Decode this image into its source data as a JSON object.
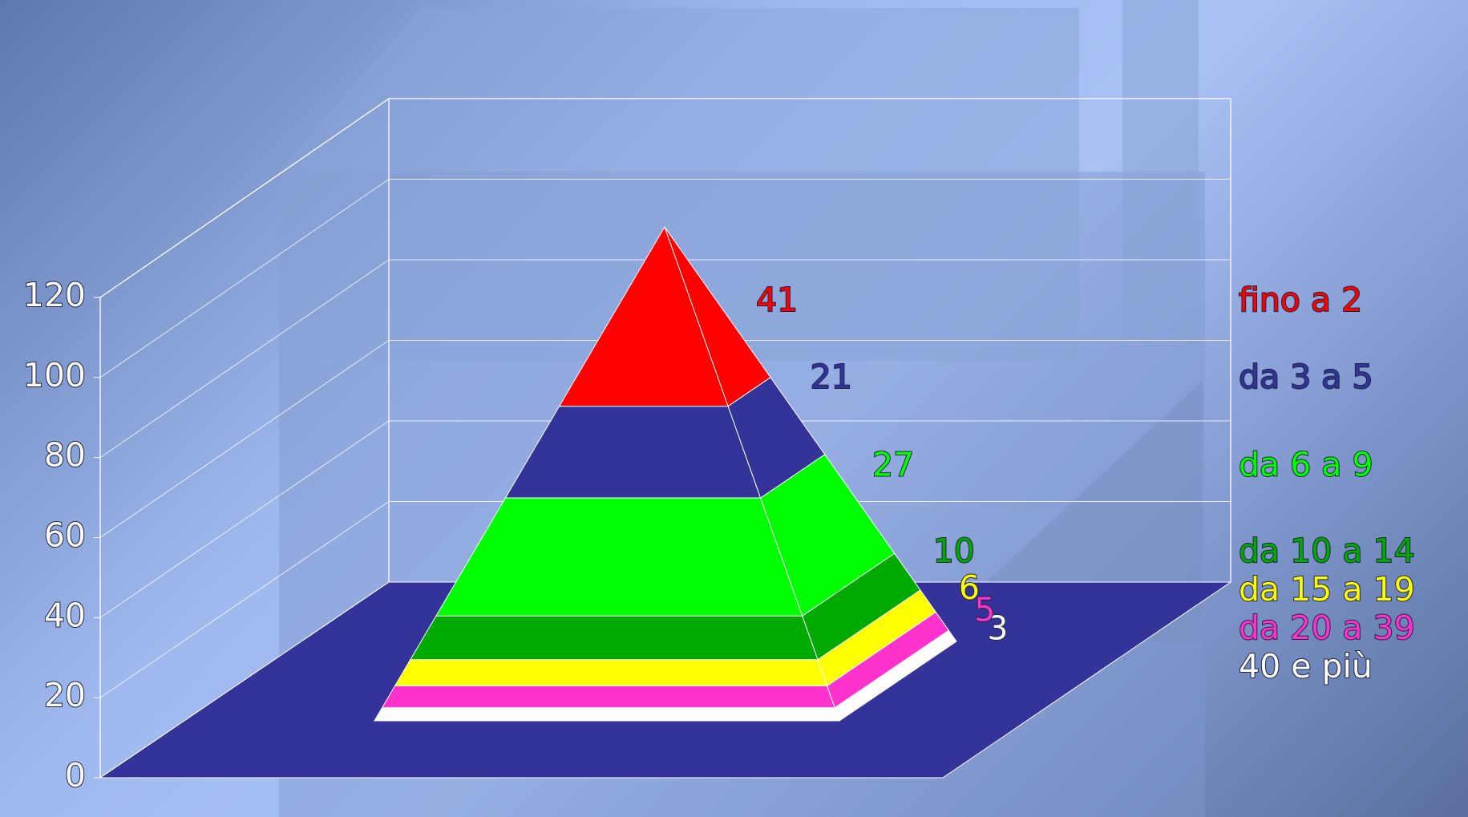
{
  "chart_data": {
    "type": "pyramid",
    "categories": [
      "fino a 2",
      "da 3 a 5",
      "da 6 a 9",
      "da 10 a 14",
      "da 15 a 19",
      "da 20 a 39",
      "40 e più"
    ],
    "values": [
      41,
      21,
      27,
      10,
      6,
      5,
      3
    ],
    "colors": [
      "#ff0000",
      "#333399",
      "#00ff00",
      "#00aa00",
      "#ffff00",
      "#ff33cc",
      "#ffffff"
    ],
    "floor_color": "#333399",
    "ylim": [
      0,
      120
    ],
    "yticks": [
      0,
      20,
      40,
      60,
      80,
      100,
      120
    ],
    "grid": true,
    "legend": "right"
  }
}
